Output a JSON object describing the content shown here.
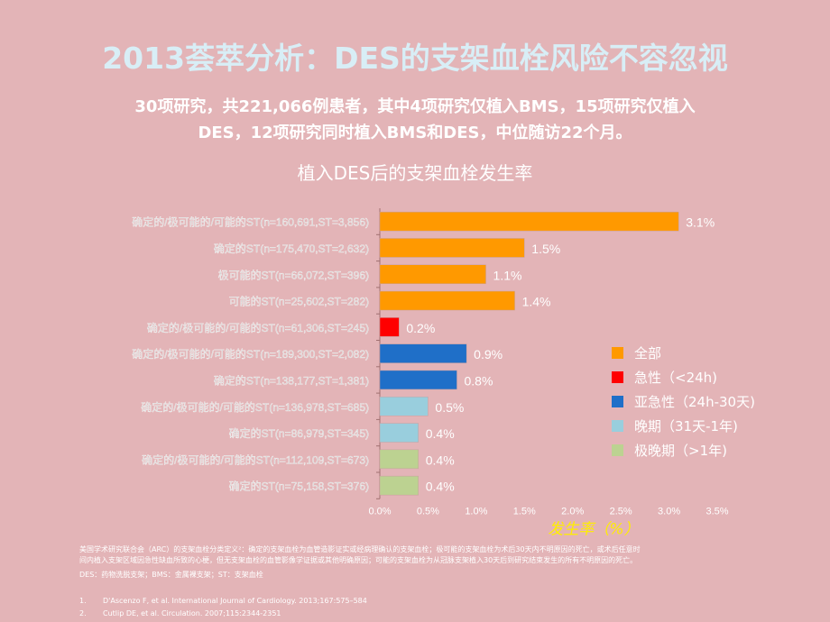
{
  "title": "2013荟萃分析：DES的支架血栓风险不容忽视",
  "subtitle_line1": "30项研究，共221,066例患者，其中4项研究仅植入BMS，15项研究仅植入",
  "subtitle_line2": "DES，12项研究同时植入BMS和DES，中位随访22个月。",
  "chart_data": {
    "type": "bar",
    "orientation": "horizontal",
    "title": "植入DES后的支架血栓发生率",
    "xlabel": "发生率（%）",
    "xlim": [
      0,
      3.5
    ],
    "xticks": [
      "0.0%",
      "0.5%",
      "1.0%",
      "1.5%",
      "2.0%",
      "2.5%",
      "3.0%",
      "3.5%"
    ],
    "categories": [
      "确定的/极可能的/可能的ST(n=160,691,ST=3,856)",
      "确定的ST(n=175,470,ST=2,632)",
      "极可能的ST(n=66,072,ST=396)",
      "可能的ST(n=25,602,ST=282)",
      "确定的/极可能的/可能的ST(n=61,306,ST=245)",
      "确定的/极可能的/可能的ST(n=189,300,ST=2,082)",
      "确定的ST(n=138,177,ST=1,381)",
      "确定的/极可能的/可能的ST(n=136,978,ST=685)",
      "确定的ST(n=86,979,ST=345)",
      "确定的/极可能的/可能的ST(n=112,109,ST=673)",
      "确定的ST(n=75,158,ST=376)"
    ],
    "values": [
      3.1,
      1.5,
      1.1,
      1.4,
      0.2,
      0.9,
      0.8,
      0.5,
      0.4,
      0.4,
      0.4
    ],
    "data_labels": [
      "3.1%",
      "1.5%",
      "1.1%",
      "1.4%",
      "0.2%",
      "0.9%",
      "0.8%",
      "0.5%",
      "0.4%",
      "0.4%",
      "0.4%"
    ],
    "groups": [
      0,
      0,
      0,
      0,
      1,
      2,
      2,
      3,
      3,
      4,
      4
    ],
    "legend": [
      {
        "name": "全部",
        "color": "#ff9900"
      },
      {
        "name": "急性（<24h)",
        "color": "#ff0000"
      },
      {
        "name": "亚急性（24h-30天)",
        "color": "#1f6fc8"
      },
      {
        "name": "晚期（31天-1年)",
        "color": "#99cedd"
      },
      {
        "name": "极晚期（>1年)",
        "color": "#bcd291"
      }
    ],
    "legend_position": "right",
    "grid": false
  },
  "footnote_line1": "美国学术研究联合会（ARC）的支架血栓分类定义²：确定的支架血栓为血管造影证实或经病理确认的支架血栓；极可能的支架血栓为术后30天内不明原因的死亡，或术后任意时",
  "footnote_line2": "间内植入支架区域因急性缺血所致的心梗，但无支架血栓的血管影像学证据或其他明确原因；可能的支架血栓为从冠脉支架植入30天后到研究结束发生的所有不明原因的死亡。",
  "abbrev": "DES：药物洗脱支架；BMS：金属裸支架；ST：支架血栓",
  "references": [
    {
      "n": "1.",
      "text": "D'Ascenzo F, et al. International Journal of Cardiology. 2013;167:575–584"
    },
    {
      "n": "2.",
      "text": "Cutlip DE, et al. Circulation. 2007;115:2344-2351"
    }
  ]
}
